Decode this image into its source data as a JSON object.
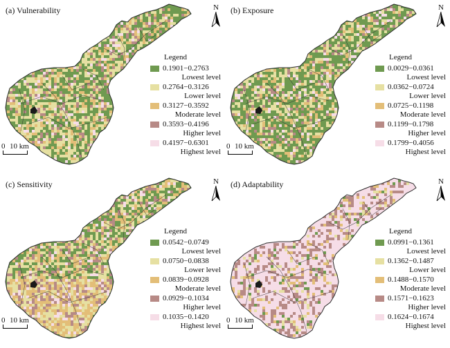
{
  "north_label": "N",
  "scale": {
    "zero": "0",
    "dist": "10 km"
  },
  "legend_title": "Legend",
  "colors": {
    "lowest": "#6f9a50",
    "lower": "#e6e0a2",
    "moderate": "#e3be78",
    "higher": "#b78a86",
    "highest": "#f6dde7",
    "boundary": "#2b2b2b"
  },
  "panels": [
    {
      "title": "(a) Vulnerability",
      "mix": [
        0.4,
        0.3,
        0.15,
        0.09,
        0.06
      ],
      "legend": [
        {
          "range": "0.1901−0.2763",
          "level": "Lowest level"
        },
        {
          "range": "0.2764−0.3126",
          "level": "Lower level"
        },
        {
          "range": "0.3127−0.3592",
          "level": "Moderate level"
        },
        {
          "range": "0.3593−0.4196",
          "level": "Higher level"
        },
        {
          "range": "0.4197−0.6301",
          "level": "Highest level"
        }
      ]
    },
    {
      "title": "(b) Exposure",
      "mix": [
        0.5,
        0.22,
        0.12,
        0.08,
        0.08
      ],
      "legend": [
        {
          "range": "0.0029−0.0361",
          "level": "Lowest level"
        },
        {
          "range": "0.0362−0.0724",
          "level": "Lower level"
        },
        {
          "range": "0.0725−0.1198",
          "level": "Moderate level"
        },
        {
          "range": "0.1199−0.1798",
          "level": "Higher level"
        },
        {
          "range": "0.1799−0.4056",
          "level": "Highest level"
        }
      ]
    },
    {
      "title": "(c) Sensitivity",
      "mix": [
        0.32,
        0.28,
        0.2,
        0.12,
        0.08
      ],
      "legend": [
        {
          "range": "0.0542−0.0749",
          "level": "Lowest level"
        },
        {
          "range": "0.0750−0.0838",
          "level": "Lower level"
        },
        {
          "range": "0.0839−0.0928",
          "level": "Moderate level"
        },
        {
          "range": "0.0929−0.1034",
          "level": "Higher level"
        },
        {
          "range": "0.1035−0.1420",
          "level": "Highest level"
        }
      ]
    },
    {
      "title": "(d) Adaptability",
      "mix": [
        0.04,
        0.05,
        0.08,
        0.23,
        0.6
      ],
      "legend": [
        {
          "range": "0.0991−0.1361",
          "level": "Lowest level"
        },
        {
          "range": "0.1362−0.1487",
          "level": "Lower level"
        },
        {
          "range": "0.1488−0.1570",
          "level": "Moderate level"
        },
        {
          "range": "0.1571−0.1623",
          "level": "Higher level"
        },
        {
          "range": "0.1624−0.1674",
          "level": "Highest level"
        }
      ]
    }
  ]
}
